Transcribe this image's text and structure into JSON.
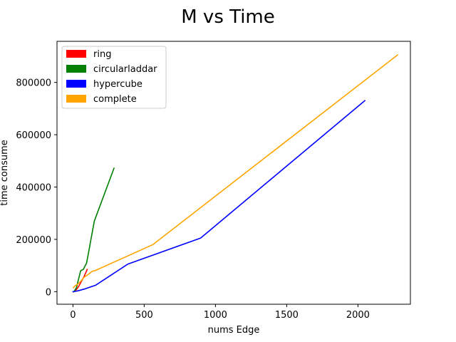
{
  "chart_data": {
    "type": "line",
    "title": "M vs Time",
    "xlabel": "nums Edge",
    "ylabel": "time consume",
    "xlim": [
      -112,
      2368
    ],
    "ylim": [
      -48000,
      957000
    ],
    "x_ticks": [
      0,
      500,
      1000,
      1500,
      2000
    ],
    "x_tick_labels": [
      "0",
      "500",
      "1000",
      "1500",
      "2000"
    ],
    "y_ticks": [
      0,
      200000,
      400000,
      600000,
      800000
    ],
    "y_tick_labels": [
      "0",
      "200000",
      "400000",
      "600000",
      "800000"
    ],
    "grid": false,
    "legend_position": "top-left",
    "series": [
      {
        "name": "ring",
        "color": "#ff0000",
        "x": [
          5,
          20,
          40,
          60,
          80,
          100
        ],
        "y": [
          0,
          5000,
          20000,
          40000,
          60000,
          85000
        ]
      },
      {
        "name": "circularladdar",
        "color": "#008000",
        "x": [
          6,
          24,
          54,
          60,
          72,
          96,
          150,
          288
        ],
        "y": [
          0,
          15000,
          80000,
          82000,
          85000,
          110000,
          270000,
          472000
        ]
      },
      {
        "name": "hypercube",
        "color": "#0000ff",
        "x": [
          0,
          12,
          32,
          80,
          160,
          384,
          896,
          2048
        ],
        "y": [
          0,
          1000,
          3000,
          10000,
          25000,
          105000,
          205000,
          730000
        ]
      },
      {
        "name": "complete",
        "color": "#ffa500",
        "x": [
          3,
          10,
          21,
          36,
          55,
          78,
          105,
          136,
          153,
          561,
          2278
        ],
        "y": [
          15000,
          20000,
          25000,
          30000,
          40000,
          55000,
          65000,
          78000,
          80000,
          180000,
          905000
        ]
      }
    ]
  }
}
